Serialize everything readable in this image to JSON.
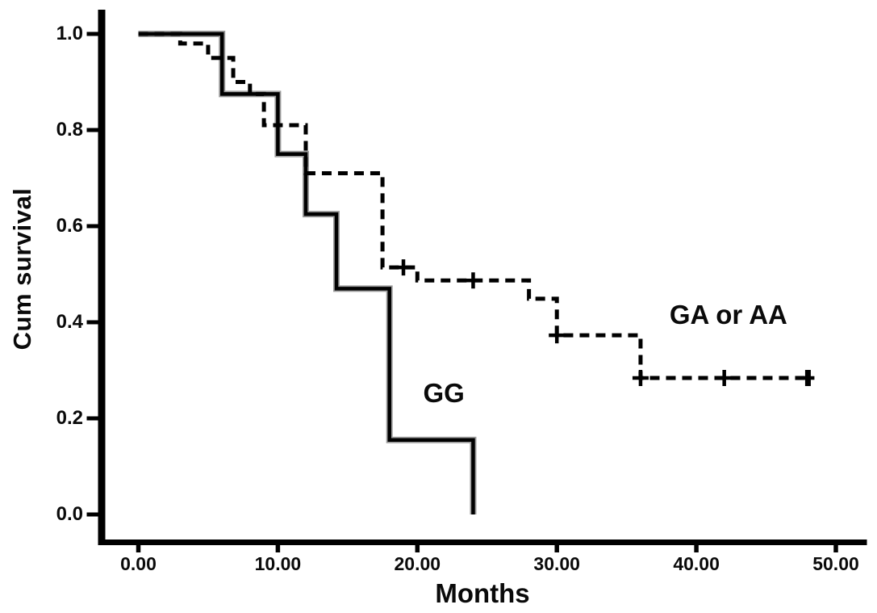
{
  "figure": {
    "background": "#ffffff",
    "axis_color": "#000000"
  },
  "chart_data": {
    "type": "line",
    "subtype": "kaplan_meier_step",
    "title": "",
    "xlabel": "Months",
    "ylabel": "Cum survival",
    "xlim": [
      0,
      50
    ],
    "ylim": [
      0.0,
      1.0
    ],
    "grid": false,
    "legend_position": "inline-annotations",
    "x_ticks": [
      {
        "value": 0,
        "label": "0.00"
      },
      {
        "value": 10,
        "label": "10.00"
      },
      {
        "value": 20,
        "label": "20.00"
      },
      {
        "value": 30,
        "label": "30.00"
      },
      {
        "value": 40,
        "label": "40.00"
      },
      {
        "value": 50,
        "label": "50.00"
      }
    ],
    "y_ticks": [
      {
        "value": 0.0,
        "label": "0.0"
      },
      {
        "value": 0.2,
        "label": "0.2"
      },
      {
        "value": 0.4,
        "label": "0.4"
      },
      {
        "value": 0.6,
        "label": "0.6"
      },
      {
        "value": 0.8,
        "label": "0.8"
      },
      {
        "value": 1.0,
        "label": "1.0"
      }
    ],
    "series": [
      {
        "name": "GG",
        "line_style": "solid",
        "color": "#000000",
        "shadow_color": "#9b9b9b",
        "start": [
          0,
          1.0
        ],
        "drops": [
          [
            6,
            0.875
          ],
          [
            10,
            0.75
          ],
          [
            12,
            0.625
          ],
          [
            14.2,
            0.47
          ],
          [
            18,
            0.155
          ],
          [
            24,
            0.0
          ]
        ],
        "end_time": 24,
        "censors": [],
        "annotation": {
          "text": "GG",
          "x": 21.9,
          "y": 0.252
        }
      },
      {
        "name": "GA or AA",
        "line_style": "dashed",
        "color": "#000000",
        "start": [
          0,
          1.0
        ],
        "drops": [
          [
            3,
            0.98
          ],
          [
            5,
            0.95
          ],
          [
            6.8,
            0.9
          ],
          [
            8,
            0.875
          ],
          [
            9,
            0.81
          ],
          [
            12,
            0.71
          ],
          [
            17.5,
            0.514
          ],
          [
            20,
            0.487
          ],
          [
            28,
            0.449
          ],
          [
            30,
            0.373
          ],
          [
            36,
            0.284
          ]
        ],
        "end_time": 48,
        "censors": [
          [
            19,
            0.514
          ],
          [
            24,
            0.487
          ],
          [
            30,
            0.373
          ],
          [
            36,
            0.284
          ],
          [
            42,
            0.284
          ]
        ],
        "terminal_censor": [
          48,
          0.284
        ],
        "annotation": {
          "text": "GA or AA",
          "x": 42.3,
          "y": 0.415
        }
      }
    ]
  }
}
